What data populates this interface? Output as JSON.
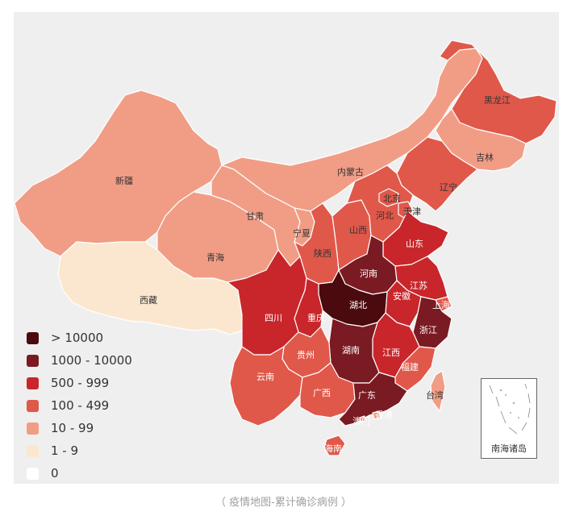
{
  "colors": {
    "gt10000": "#4a0a0e",
    "c1000_10000": "#7a1a22",
    "c500_999": "#c8262b",
    "c100_499": "#e0584a",
    "c10_99": "#f19d86",
    "c1_9": "#fbe7cf",
    "zero": "#ffffff",
    "background": "#efefef",
    "caption": "#a0a0a0"
  },
  "legend": [
    {
      "label": "> 10000",
      "color": "#4a0a0e"
    },
    {
      "label": "1000 - 10000",
      "color": "#7a1a22"
    },
    {
      "label": "500 - 999",
      "color": "#c8262b"
    },
    {
      "label": "100 - 499",
      "color": "#e0584a"
    },
    {
      "label": "10 - 99",
      "color": "#f19d86"
    },
    {
      "label": "1 - 9",
      "color": "#fbe7cf"
    },
    {
      "label": "0",
      "color": "#ffffff"
    }
  ],
  "provinces": [
    {
      "name": "新疆",
      "bin": "10 - 99"
    },
    {
      "name": "西藏",
      "bin": "1 - 9"
    },
    {
      "name": "青海",
      "bin": "10 - 99"
    },
    {
      "name": "甘肃",
      "bin": "10 - 99"
    },
    {
      "name": "内蒙古",
      "bin": "10 - 99"
    },
    {
      "name": "宁夏",
      "bin": "10 - 99"
    },
    {
      "name": "黑龙江",
      "bin": "100 - 499"
    },
    {
      "name": "吉林",
      "bin": "10 - 99"
    },
    {
      "name": "辽宁",
      "bin": "100 - 499"
    },
    {
      "name": "北京",
      "bin": "100 - 499"
    },
    {
      "name": "天津",
      "bin": "100 - 499"
    },
    {
      "name": "河北",
      "bin": "100 - 499"
    },
    {
      "name": "山西",
      "bin": "100 - 499"
    },
    {
      "name": "山东",
      "bin": "500 - 999"
    },
    {
      "name": "陕西",
      "bin": "100 - 499"
    },
    {
      "name": "河南",
      "bin": "1000 - 10000"
    },
    {
      "name": "江苏",
      "bin": "500 - 999"
    },
    {
      "name": "安徽",
      "bin": "500 - 999"
    },
    {
      "name": "上海",
      "bin": "100 - 499"
    },
    {
      "name": "湖北",
      "bin": "> 10000"
    },
    {
      "name": "四川",
      "bin": "500 - 999"
    },
    {
      "name": "重庆",
      "bin": "500 - 999"
    },
    {
      "name": "浙江",
      "bin": "1000 - 10000"
    },
    {
      "name": "湖南",
      "bin": "1000 - 10000"
    },
    {
      "name": "江西",
      "bin": "500 - 999"
    },
    {
      "name": "贵州",
      "bin": "100 - 499"
    },
    {
      "name": "福建",
      "bin": "100 - 499"
    },
    {
      "name": "云南",
      "bin": "100 - 499"
    },
    {
      "name": "广西",
      "bin": "100 - 499"
    },
    {
      "name": "广东",
      "bin": "1000 - 10000"
    },
    {
      "name": "台湾",
      "bin": "10 - 99"
    },
    {
      "name": "香港",
      "bin": "10 - 99"
    },
    {
      "name": "澳门",
      "bin": "10 - 99"
    },
    {
      "name": "海南",
      "bin": "100 - 499"
    }
  ],
  "inset_label": "南海诸岛",
  "caption": "（ 疫情地图-累计确诊病例 ）"
}
